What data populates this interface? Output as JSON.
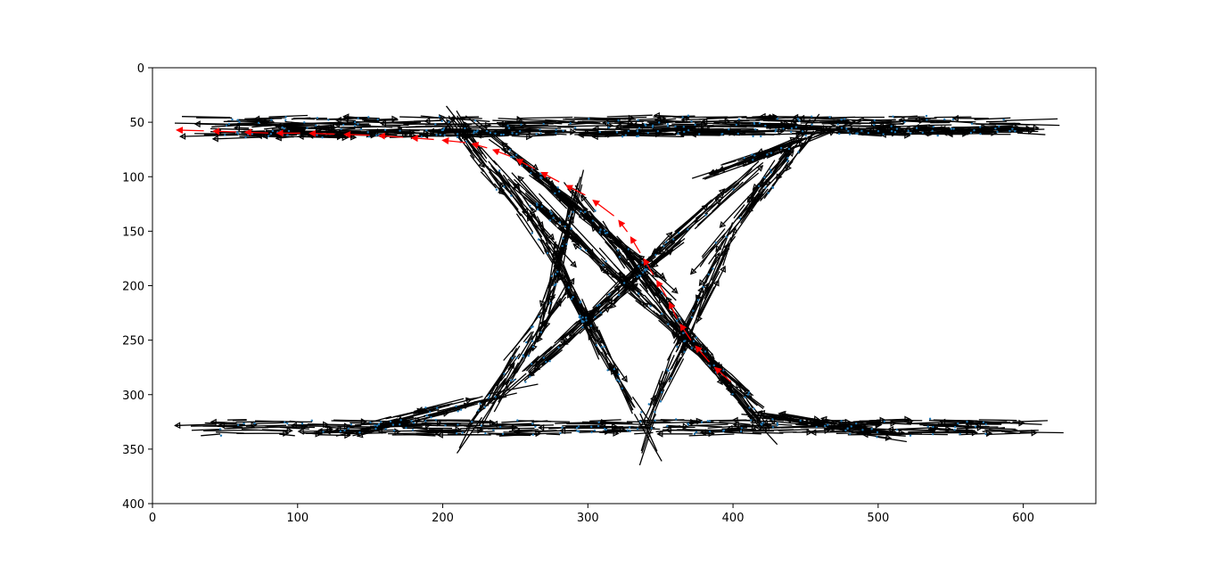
{
  "chart_data": {
    "type": "quiver",
    "title": "",
    "xlabel": "",
    "ylabel": "",
    "xlim": [
      0,
      650
    ],
    "ylim": [
      400,
      0
    ],
    "y_axis_inverted": true,
    "grid": false,
    "xticks": [
      0,
      100,
      200,
      300,
      400,
      500,
      600
    ],
    "yticks": [
      0,
      50,
      100,
      150,
      200,
      250,
      300,
      350,
      400
    ],
    "colors": {
      "background_arrows": "#000000",
      "sample_points": "#1f77b4",
      "highlight_path": "#ff0000"
    },
    "highlight_path": {
      "color": "#ff0000",
      "points": [
        [
          400,
          290
        ],
        [
          385,
          272
        ],
        [
          372,
          252
        ],
        [
          362,
          232
        ],
        [
          355,
          212
        ],
        [
          346,
          192
        ],
        [
          337,
          172
        ],
        [
          328,
          152
        ],
        [
          320,
          138
        ],
        [
          300,
          118
        ],
        [
          282,
          106
        ],
        [
          265,
          94
        ],
        [
          248,
          82
        ],
        [
          232,
          74
        ],
        [
          218,
          69
        ],
        [
          196,
          66
        ],
        [
          175,
          64
        ],
        [
          152,
          62
        ],
        [
          128,
          61
        ],
        [
          104,
          60
        ],
        [
          82,
          60
        ],
        [
          60,
          59
        ],
        [
          38,
          58
        ],
        [
          12,
          57
        ]
      ]
    },
    "trajectory_bands": [
      {
        "name": "top-rail",
        "from": [
          45,
          51
        ],
        "to": [
          597,
          51
        ],
        "width": 12
      },
      {
        "name": "top-rail-lower",
        "from": [
          45,
          61
        ],
        "to": [
          597,
          58
        ],
        "width": 6
      },
      {
        "name": "bottom-rail",
        "from": [
          42,
          330
        ],
        "to": [
          598,
          330
        ],
        "width": 14
      },
      {
        "name": "falling-left",
        "from": [
          215,
          62
        ],
        "to": [
          272,
          160
        ],
        "width": 14
      },
      {
        "name": "falling-left-lower",
        "from": [
          270,
          160
        ],
        "to": [
          335,
          320
        ],
        "width": 8
      },
      {
        "name": "rising-left",
        "from": [
          225,
          320
        ],
        "to": [
          275,
          220
        ],
        "width": 12
      },
      {
        "name": "rising-left-upper",
        "from": [
          272,
          220
        ],
        "to": [
          290,
          130
        ],
        "width": 8
      },
      {
        "name": "falling-right",
        "from": [
          300,
          130
        ],
        "to": [
          420,
          330
        ],
        "width": 10
      },
      {
        "name": "falling-right-upper",
        "from": [
          240,
          70
        ],
        "to": [
          355,
          200
        ],
        "width": 6
      },
      {
        "name": "rising-right",
        "from": [
          340,
          330
        ],
        "to": [
          395,
          165
        ],
        "width": 10
      },
      {
        "name": "rising-right-upper",
        "from": [
          390,
          165
        ],
        "to": [
          450,
          62
        ],
        "width": 12
      },
      {
        "name": "cross-up",
        "from": [
          250,
          290
        ],
        "to": [
          400,
          110
        ],
        "width": 10
      },
      {
        "name": "cross-down",
        "from": [
          262,
          120
        ],
        "to": [
          410,
          300
        ],
        "width": 8
      },
      {
        "name": "right-rise-curve",
        "from": [
          400,
          90
        ],
        "to": [
          460,
          60
        ],
        "width": 8
      },
      {
        "name": "left-fall-curve",
        "from": [
          150,
          330
        ],
        "to": [
          240,
          300
        ],
        "width": 10
      },
      {
        "name": "right-fall-curve",
        "from": [
          420,
          320
        ],
        "to": [
          500,
          335
        ],
        "width": 8
      }
    ]
  }
}
